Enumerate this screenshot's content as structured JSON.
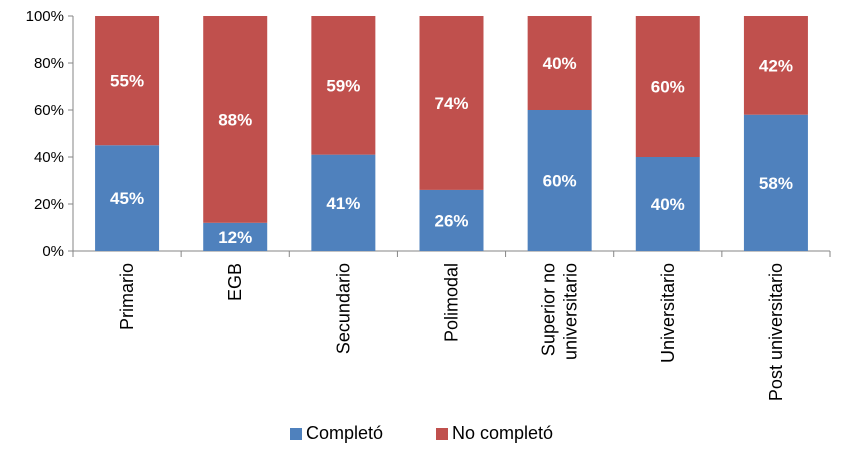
{
  "chart_data": {
    "type": "bar",
    "stacked": true,
    "percent": true,
    "categories": [
      [
        "Primario"
      ],
      [
        "EGB"
      ],
      [
        "Secundario"
      ],
      [
        "Polimodal"
      ],
      [
        "Superior no",
        "universitario"
      ],
      [
        "Universitario"
      ],
      [
        "Post universitario"
      ]
    ],
    "series": [
      {
        "name": "Completó",
        "color": "#4F81BD",
        "values": [
          45,
          12,
          41,
          26,
          60,
          40,
          58
        ],
        "labels": [
          "45%",
          "12%",
          "41%",
          "26%",
          "60%",
          "40%",
          "58%"
        ]
      },
      {
        "name": "No completó",
        "color": "#C0504D",
        "values": [
          55,
          88,
          59,
          74,
          40,
          60,
          42
        ],
        "labels": [
          "55%",
          "88%",
          "59%",
          "74%",
          "40%",
          "60%",
          "42%"
        ]
      }
    ],
    "y_ticks": [
      "0%",
      "20%",
      "40%",
      "60%",
      "80%",
      "100%"
    ],
    "ylim": [
      0,
      100
    ],
    "grid": false,
    "legend_position": "bottom"
  }
}
